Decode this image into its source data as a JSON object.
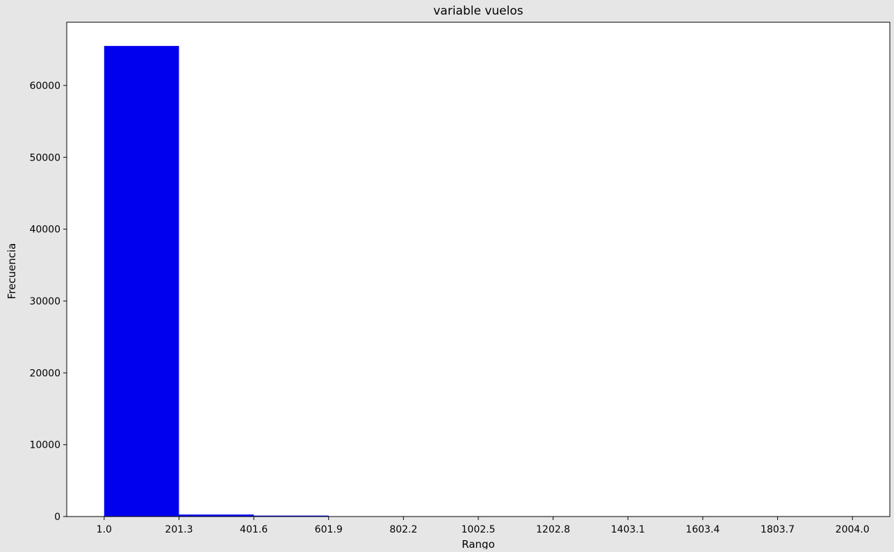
{
  "figure": {
    "background": "#e6e6e6",
    "plot_background": "#ffffff"
  },
  "chart_data": {
    "type": "bar",
    "title": "variable vuelos",
    "xlabel": "Rango",
    "ylabel": "Frecuencia",
    "bar_color": "#0000ee",
    "bin_edges": [
      1.0,
      201.3,
      401.6,
      601.9,
      802.2,
      1002.5,
      1202.8,
      1403.1,
      1603.4,
      1803.7,
      2004.0
    ],
    "values": [
      65500,
      280,
      130,
      0,
      0,
      0,
      0,
      0,
      0,
      0
    ],
    "xticks": [
      "1.0",
      "201.3",
      "401.6",
      "601.9",
      "802.2",
      "1002.5",
      "1202.8",
      "1403.1",
      "1603.4",
      "1803.7",
      "2004.0"
    ],
    "yticks": [
      0,
      10000,
      20000,
      30000,
      40000,
      50000,
      60000
    ],
    "xlim": [
      -99.15,
      2104.15
    ],
    "ylim": [
      0,
      68800
    ],
    "grid": false,
    "legend": false
  }
}
